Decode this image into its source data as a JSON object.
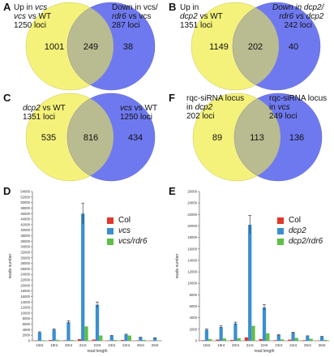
{
  "colors": {
    "yellow": "#f4f27a",
    "blue": "#6f79ef",
    "overlap": "#b9bb90",
    "col": "#e0392b",
    "mutant": "#3b8fd0",
    "rdr6": "#5fbf46"
  },
  "venn": {
    "A": {
      "label": "A",
      "left_line1_a": "Up in ",
      "left_line1_b": "vcs",
      "left_line2_a": "vcs",
      "left_line2_b": " vs WT",
      "left_line3": "1250 loci",
      "right_line1": "Down in vcs/",
      "right_line2_a": "rdr6",
      "right_line2_b": " vs vcs",
      "right_line3": "287 loci",
      "left_only": "1001",
      "both": "249",
      "right_only": "38"
    },
    "B": {
      "label": "B",
      "left_line1": "Up in",
      "left_line2_a": "dcp2",
      "left_line2_b": " vs WT",
      "left_line3": "1351 loci",
      "right_line1": "Down in dcp2/",
      "right_line2": "rdr6 vs dcp2",
      "right_line3": "242 loci",
      "left_only": "1149",
      "both": "202",
      "right_only": "40"
    },
    "C": {
      "label": "C",
      "left_line1_a": "dcp2",
      "left_line1_b": " vs WT",
      "left_line2": "1351 loci",
      "right_line1_a": "vcs",
      "right_line1_b": " vs WT",
      "right_line2": "1250 loci",
      "left_only": "535",
      "both": "816",
      "right_only": "434"
    },
    "F": {
      "label": "F",
      "left_line1": "rqc-siRNA locus",
      "left_line2_a": "in ",
      "left_line2_b": "dcp2",
      "left_line3": "202 loci",
      "right_line1": "rqc-siRNA locus",
      "right_line2_a": "in ",
      "right_line2_b": "vcs",
      "right_line3": "249 loci",
      "left_only": "89",
      "both": "113",
      "right_only": "136"
    }
  },
  "chart_data": [
    {
      "panel": "D",
      "type": "bar",
      "categories": [
        "18nt",
        "19nt",
        "20nt",
        "21nt",
        "22nt",
        "23nt",
        "24nt",
        "25nt",
        "26nt"
      ],
      "series": [
        {
          "name": "Col",
          "values": [
            150,
            300,
            200,
            600,
            450,
            150,
            300,
            150,
            100
          ]
        },
        {
          "name": "vcs",
          "values": [
            3000,
            4000,
            6700,
            46000,
            13000,
            1800,
            2200,
            1200,
            1000
          ]
        },
        {
          "name": "vcs/rdr6",
          "values": [
            200,
            350,
            300,
            5200,
            1900,
            300,
            1900,
            300,
            100
          ]
        }
      ],
      "xlabel": "read length",
      "ylabel": "reads number",
      "ylim": [
        0,
        54000
      ],
      "yticks": [
        "0",
        "2000",
        "4000",
        "6000",
        "8000",
        "10000",
        "12000",
        "14000",
        "16000",
        "18000",
        "20000",
        "22000",
        "24000",
        "26000",
        "28000",
        "30000",
        "32000",
        "34000",
        "36000",
        "38000",
        "40000",
        "42000",
        "44000",
        "46000",
        "48000",
        "50000",
        "52000",
        "54000"
      ]
    },
    {
      "panel": "E",
      "type": "bar",
      "categories": [
        "18nt",
        "19nt",
        "20nt",
        "21nt",
        "22nt",
        "23nt",
        "24nt",
        "25nt",
        "26nt"
      ],
      "series": [
        {
          "name": "Col",
          "values": [
            100,
            200,
            150,
            600,
            300,
            100,
            200,
            100,
            50
          ]
        },
        {
          "name": "dcp2",
          "values": [
            1900,
            2400,
            3000,
            20200,
            5800,
            1000,
            1400,
            800,
            700
          ]
        },
        {
          "name": "dcp2/rdr6",
          "values": [
            300,
            400,
            450,
            2600,
            1300,
            250,
            500,
            350,
            150
          ]
        }
      ],
      "xlabel": "read length",
      "ylabel": "reads number",
      "ylim": [
        0,
        26000
      ],
      "yticks": [
        "0",
        "2000",
        "4000",
        "6000",
        "8000",
        "10000",
        "12000",
        "14000",
        "16000",
        "18000",
        "20000",
        "22000",
        "24000",
        "26000"
      ]
    }
  ]
}
